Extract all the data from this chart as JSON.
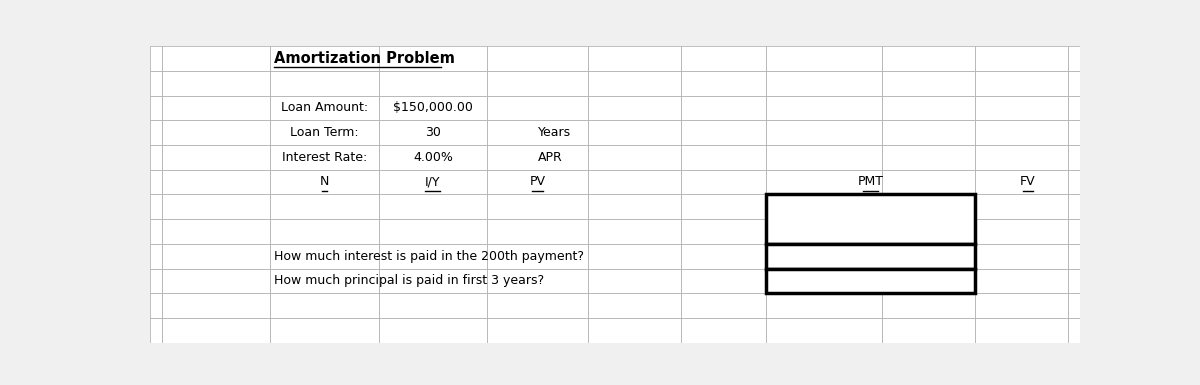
{
  "title": "Amortization Problem",
  "loan_amount_label": "Loan Amount:",
  "loan_amount_value": "$150,000.00",
  "loan_term_label": "Loan Term:",
  "loan_term_value": "30",
  "loan_term_unit": "Years",
  "interest_rate_label": "Interest Rate:",
  "interest_rate_value": "4.00%",
  "interest_rate_unit": "APR",
  "col_headers": [
    "N",
    "I/Y",
    "PV",
    "PMT",
    "FV"
  ],
  "question1": "How much interest is paid in the 200th payment?",
  "question2": "How much principal is paid in first 3 years?",
  "bg_color": "#f0f0f0",
  "grid_color": "#aaaaaa",
  "font_size_title": 10.5,
  "font_size_text": 9,
  "font_size_headers": 9,
  "col_edges": [
    0,
    0.15,
    1.55,
    2.95,
    4.35,
    5.65,
    6.85,
    7.95,
    9.45,
    10.65,
    11.85,
    12.0
  ],
  "row_count": 12
}
